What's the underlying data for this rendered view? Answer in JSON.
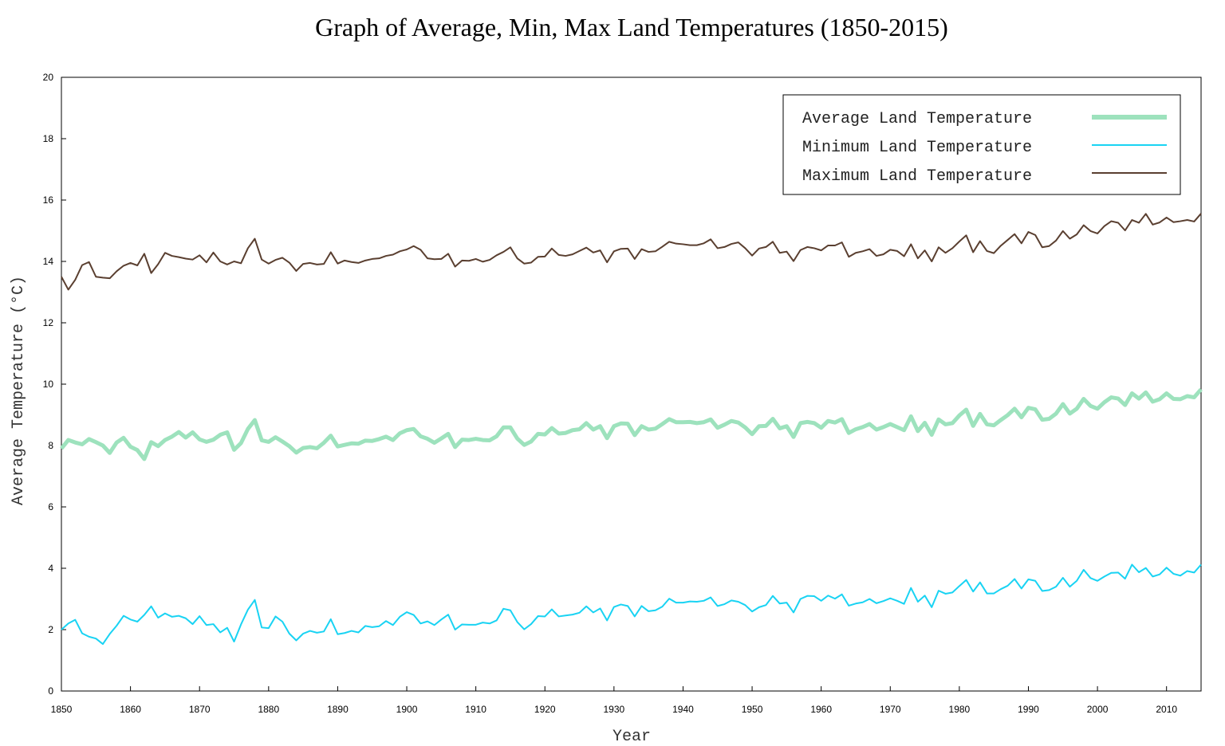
{
  "chart_data": {
    "type": "line",
    "title": "Graph of Average, Min, Max Land Temperatures (1850-2015)",
    "xlabel": "Year",
    "ylabel": "Average Temperature (°C)",
    "xlim": [
      1850,
      2015
    ],
    "ylim": [
      0,
      20
    ],
    "x_ticks": [
      1850,
      1860,
      1870,
      1880,
      1890,
      1900,
      1910,
      1920,
      1930,
      1940,
      1950,
      1960,
      1970,
      1980,
      1990,
      2000,
      2010
    ],
    "y_ticks": [
      0,
      2,
      4,
      6,
      8,
      10,
      12,
      14,
      16,
      18,
      20
    ],
    "grid": false,
    "legend_position": "top-right",
    "x": [
      1850,
      1851,
      1852,
      1853,
      1854,
      1855,
      1856,
      1857,
      1858,
      1859,
      1860,
      1861,
      1862,
      1863,
      1864,
      1865,
      1866,
      1867,
      1868,
      1869,
      1870,
      1871,
      1872,
      1873,
      1874,
      1875,
      1876,
      1877,
      1878,
      1879,
      1880,
      1881,
      1882,
      1883,
      1884,
      1885,
      1886,
      1887,
      1888,
      1889,
      1890,
      1891,
      1892,
      1893,
      1894,
      1895,
      1896,
      1897,
      1898,
      1899,
      1900,
      1901,
      1902,
      1903,
      1904,
      1905,
      1906,
      1907,
      1908,
      1909,
      1910,
      1911,
      1912,
      1913,
      1914,
      1915,
      1916,
      1917,
      1918,
      1919,
      1920,
      1921,
      1922,
      1923,
      1924,
      1925,
      1926,
      1927,
      1928,
      1929,
      1930,
      1931,
      1932,
      1933,
      1934,
      1935,
      1936,
      1937,
      1938,
      1939,
      1940,
      1941,
      1942,
      1943,
      1944,
      1945,
      1946,
      1947,
      1948,
      1949,
      1950,
      1951,
      1952,
      1953,
      1954,
      1955,
      1956,
      1957,
      1958,
      1959,
      1960,
      1961,
      1962,
      1963,
      1964,
      1965,
      1966,
      1967,
      1968,
      1969,
      1970,
      1971,
      1972,
      1973,
      1974,
      1975,
      1976,
      1977,
      1978,
      1979,
      1980,
      1981,
      1982,
      1983,
      1984,
      1985,
      1986,
      1987,
      1988,
      1989,
      1990,
      1991,
      1992,
      1993,
      1994,
      1995,
      1996,
      1997,
      1998,
      1999,
      2000,
      2001,
      2002,
      2003,
      2004,
      2005,
      2006,
      2007,
      2008,
      2009,
      2010,
      2011,
      2012,
      2013,
      2014,
      2015
    ],
    "series": [
      {
        "name": "Average Land Temperature",
        "color": "#9de2bd",
        "values": [
          7.9,
          8.18,
          8.1,
          8.04,
          8.21,
          8.11,
          8.0,
          7.76,
          8.1,
          8.25,
          7.96,
          7.85,
          7.56,
          8.11,
          7.98,
          8.18,
          8.29,
          8.44,
          8.26,
          8.43,
          8.2,
          8.12,
          8.19,
          8.35,
          8.43,
          7.86,
          8.08,
          8.54,
          8.83,
          8.17,
          8.12,
          8.27,
          8.13,
          7.98,
          7.77,
          7.92,
          7.95,
          7.91,
          8.09,
          8.32,
          7.97,
          8.02,
          8.07,
          8.06,
          8.16,
          8.15,
          8.21,
          8.29,
          8.18,
          8.4,
          8.5,
          8.54,
          8.3,
          8.22,
          8.09,
          8.23,
          8.38,
          7.95,
          8.19,
          8.18,
          8.22,
          8.18,
          8.17,
          8.3,
          8.59,
          8.59,
          8.23,
          8.02,
          8.13,
          8.38,
          8.36,
          8.57,
          8.39,
          8.41,
          8.5,
          8.53,
          8.73,
          8.52,
          8.63,
          8.24,
          8.63,
          8.72,
          8.71,
          8.34,
          8.63,
          8.52,
          8.55,
          8.7,
          8.86,
          8.76,
          8.76,
          8.77,
          8.73,
          8.76,
          8.85,
          8.58,
          8.68,
          8.8,
          8.75,
          8.59,
          8.37,
          8.63,
          8.64,
          8.87,
          8.56,
          8.63,
          8.28,
          8.73,
          8.77,
          8.73,
          8.58,
          8.8,
          8.75,
          8.86,
          8.41,
          8.53,
          8.6,
          8.7,
          8.52,
          8.6,
          8.7,
          8.6,
          8.5,
          8.95,
          8.47,
          8.74,
          8.35,
          8.85,
          8.69,
          8.73,
          8.98,
          9.17,
          8.64,
          9.03,
          8.69,
          8.66,
          8.83,
          8.99,
          9.2,
          8.92,
          9.23,
          9.18,
          8.84,
          8.87,
          9.04,
          9.35,
          9.04,
          9.2,
          9.52,
          9.29,
          9.2,
          9.41,
          9.57,
          9.53,
          9.32,
          9.7,
          9.53,
          9.73,
          9.43,
          9.51,
          9.7,
          9.52,
          9.51,
          9.61,
          9.57,
          9.83
        ]
      },
      {
        "name": "Minimum Land Temperature",
        "color": "#19d3f3",
        "values": [
          2.0,
          2.2,
          2.32,
          1.88,
          1.77,
          1.71,
          1.53,
          1.86,
          2.13,
          2.45,
          2.33,
          2.26,
          2.48,
          2.76,
          2.39,
          2.53,
          2.42,
          2.45,
          2.37,
          2.18,
          2.44,
          2.15,
          2.18,
          1.91,
          2.06,
          1.61,
          2.17,
          2.65,
          2.97,
          2.07,
          2.05,
          2.43,
          2.26,
          1.87,
          1.65,
          1.87,
          1.96,
          1.9,
          1.94,
          2.34,
          1.85,
          1.89,
          1.96,
          1.91,
          2.12,
          2.08,
          2.11,
          2.28,
          2.15,
          2.42,
          2.57,
          2.48,
          2.2,
          2.27,
          2.15,
          2.33,
          2.49,
          2.0,
          2.17,
          2.16,
          2.16,
          2.23,
          2.2,
          2.3,
          2.68,
          2.63,
          2.25,
          2.01,
          2.18,
          2.44,
          2.43,
          2.66,
          2.43,
          2.46,
          2.49,
          2.55,
          2.76,
          2.56,
          2.69,
          2.3,
          2.74,
          2.82,
          2.77,
          2.43,
          2.77,
          2.6,
          2.63,
          2.75,
          3.01,
          2.88,
          2.88,
          2.92,
          2.91,
          2.94,
          3.05,
          2.77,
          2.83,
          2.95,
          2.91,
          2.8,
          2.59,
          2.73,
          2.8,
          3.1,
          2.85,
          2.88,
          2.56,
          3.0,
          3.1,
          3.09,
          2.94,
          3.11,
          3.01,
          3.15,
          2.78,
          2.85,
          2.89,
          3.0,
          2.86,
          2.93,
          3.02,
          2.94,
          2.84,
          3.36,
          2.91,
          3.11,
          2.73,
          3.27,
          3.17,
          3.21,
          3.42,
          3.62,
          3.24,
          3.54,
          3.18,
          3.18,
          3.32,
          3.43,
          3.65,
          3.34,
          3.64,
          3.59,
          3.26,
          3.29,
          3.4,
          3.69,
          3.4,
          3.59,
          3.95,
          3.68,
          3.59,
          3.73,
          3.85,
          3.86,
          3.66,
          4.12,
          3.87,
          4.01,
          3.73,
          3.8,
          4.02,
          3.82,
          3.76,
          3.91,
          3.86,
          4.12
        ]
      },
      {
        "name": "Maximum Land Temperature",
        "color": "#5a3f30",
        "values": [
          13.5,
          13.08,
          13.4,
          13.88,
          13.98,
          13.5,
          13.47,
          13.45,
          13.68,
          13.86,
          13.95,
          13.87,
          14.25,
          13.62,
          13.91,
          14.28,
          14.18,
          14.14,
          14.09,
          14.06,
          14.2,
          13.97,
          14.29,
          14.0,
          13.9,
          14.0,
          13.94,
          14.43,
          14.74,
          14.06,
          13.93,
          14.05,
          14.12,
          13.96,
          13.69,
          13.92,
          13.95,
          13.9,
          13.92,
          14.3,
          13.93,
          14.03,
          13.98,
          13.95,
          14.03,
          14.08,
          14.1,
          14.18,
          14.22,
          14.33,
          14.39,
          14.5,
          14.38,
          14.1,
          14.07,
          14.08,
          14.25,
          13.83,
          14.03,
          14.02,
          14.08,
          13.99,
          14.05,
          14.2,
          14.31,
          14.46,
          14.1,
          13.93,
          13.96,
          14.15,
          14.16,
          14.42,
          14.21,
          14.18,
          14.23,
          14.34,
          14.45,
          14.29,
          14.36,
          13.97,
          14.33,
          14.41,
          14.42,
          14.08,
          14.4,
          14.31,
          14.33,
          14.48,
          14.64,
          14.58,
          14.56,
          14.53,
          14.53,
          14.59,
          14.72,
          14.43,
          14.47,
          14.57,
          14.62,
          14.43,
          14.19,
          14.42,
          14.47,
          14.64,
          14.28,
          14.32,
          14.01,
          14.37,
          14.47,
          14.43,
          14.36,
          14.52,
          14.52,
          14.62,
          14.15,
          14.28,
          14.33,
          14.4,
          14.18,
          14.23,
          14.38,
          14.34,
          14.17,
          14.56,
          14.1,
          14.36,
          14.0,
          14.46,
          14.28,
          14.43,
          14.65,
          14.85,
          14.3,
          14.66,
          14.34,
          14.27,
          14.51,
          14.7,
          14.89,
          14.59,
          14.96,
          14.86,
          14.46,
          14.5,
          14.68,
          14.99,
          14.74,
          14.88,
          15.18,
          14.99,
          14.91,
          15.15,
          15.31,
          15.26,
          15.01,
          15.35,
          15.26,
          15.55,
          15.2,
          15.27,
          15.43,
          15.28,
          15.31,
          15.35,
          15.3,
          15.56
        ]
      }
    ]
  }
}
